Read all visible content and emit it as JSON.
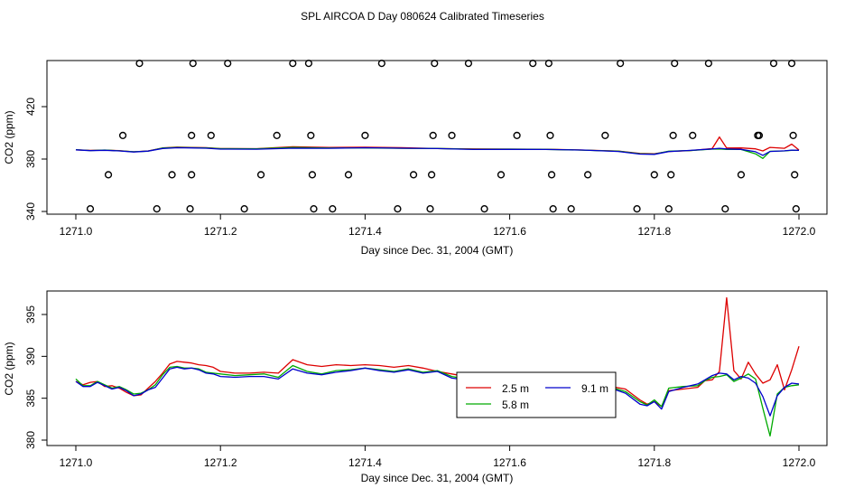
{
  "figure": {
    "title": "SPL AIRCOA D  Day 080624  Calibrated Timeseries"
  },
  "chart_data": [
    {
      "type": "scatter+line",
      "xlabel": "Day since Dec. 31, 2004 (GMT)",
      "ylabel": "CO2 (ppm)",
      "xlim": [
        1271.0,
        1272.0
      ],
      "ylim": [
        340,
        450
      ],
      "x_ticks": [
        "1271.0",
        "1271.2",
        "1271.4",
        "1271.6",
        "1271.8",
        "1272.0"
      ],
      "y_ticks": [
        "340",
        "380",
        "420"
      ],
      "cal_points": {
        "marker": "circle",
        "points": [
          [
            1271.02,
            342
          ],
          [
            1271.045,
            368
          ],
          [
            1271.065,
            398
          ],
          [
            1271.088,
            453
          ],
          [
            1271.112,
            342
          ],
          [
            1271.133,
            368
          ],
          [
            1271.158,
            342
          ],
          [
            1271.16,
            368
          ],
          [
            1271.16,
            398
          ],
          [
            1271.162,
            453
          ],
          [
            1271.187,
            398
          ],
          [
            1271.21,
            453
          ],
          [
            1271.233,
            342
          ],
          [
            1271.256,
            368
          ],
          [
            1271.278,
            398
          ],
          [
            1271.3,
            453
          ],
          [
            1271.322,
            453
          ],
          [
            1271.325,
            398
          ],
          [
            1271.327,
            368
          ],
          [
            1271.329,
            342
          ],
          [
            1271.355,
            342
          ],
          [
            1271.377,
            368
          ],
          [
            1271.4,
            398
          ],
          [
            1271.423,
            453
          ],
          [
            1271.445,
            342
          ],
          [
            1271.467,
            368
          ],
          [
            1271.49,
            342
          ],
          [
            1271.492,
            368
          ],
          [
            1271.494,
            398
          ],
          [
            1271.496,
            453
          ],
          [
            1271.52,
            398
          ],
          [
            1271.543,
            453
          ],
          [
            1271.565,
            342
          ],
          [
            1271.588,
            368
          ],
          [
            1271.61,
            398
          ],
          [
            1271.632,
            453
          ],
          [
            1271.654,
            453
          ],
          [
            1271.656,
            398
          ],
          [
            1271.658,
            368
          ],
          [
            1271.66,
            342
          ],
          [
            1271.685,
            342
          ],
          [
            1271.708,
            368
          ],
          [
            1271.732,
            398
          ],
          [
            1271.753,
            453
          ],
          [
            1271.776,
            342
          ],
          [
            1271.8,
            368
          ],
          [
            1271.82,
            342
          ],
          [
            1271.823,
            368
          ],
          [
            1271.826,
            398
          ],
          [
            1271.828,
            453
          ],
          [
            1271.853,
            398
          ],
          [
            1271.875,
            453
          ],
          [
            1271.898,
            342
          ],
          [
            1271.92,
            368
          ],
          [
            1271.943,
            398
          ],
          [
            1271.945,
            398
          ],
          [
            1271.965,
            453
          ],
          [
            1271.99,
            453
          ],
          [
            1271.992,
            398
          ],
          [
            1271.994,
            368
          ],
          [
            1271.996,
            342
          ]
        ]
      },
      "x": [
        1271.0,
        1271.02,
        1271.04,
        1271.06,
        1271.08,
        1271.1,
        1271.12,
        1271.14,
        1271.16,
        1271.18,
        1271.2,
        1271.25,
        1271.3,
        1271.35,
        1271.4,
        1271.45,
        1271.5,
        1271.55,
        1271.6,
        1271.65,
        1271.7,
        1271.75,
        1271.78,
        1271.8,
        1271.82,
        1271.85,
        1271.88,
        1271.89,
        1271.9,
        1271.92,
        1271.94,
        1271.95,
        1271.96,
        1271.98,
        1271.99,
        1272.0
      ],
      "series": [
        {
          "color": "#dd0000",
          "values": [
            387.0,
            386.6,
            386.8,
            386.4,
            385.5,
            386.2,
            388.5,
            389.1,
            388.9,
            388.7,
            388.0,
            387.9,
            389.4,
            388.8,
            389.0,
            388.7,
            388.0,
            387.7,
            387.6,
            387.5,
            386.9,
            386.1,
            384.3,
            384.0,
            385.8,
            386.5,
            388.0,
            396.8,
            388.4,
            388.5,
            387.8,
            386.2,
            388.9,
            388.2,
            391.4,
            386.9
          ]
        },
        {
          "color": "#00aa00",
          "values": [
            387.2,
            386.5,
            386.9,
            386.3,
            385.6,
            386.0,
            388.4,
            388.9,
            388.7,
            388.5,
            387.9,
            387.8,
            388.8,
            388.4,
            388.5,
            388.2,
            388.1,
            387.5,
            387.6,
            387.4,
            386.8,
            386.0,
            384.1,
            383.8,
            386.0,
            386.5,
            387.6,
            387.7,
            387.4,
            387.3,
            384.0,
            380.5,
            385.9,
            386.2,
            386.6,
            386.6
          ]
        },
        {
          "color": "#0000cc",
          "values": [
            387.0,
            386.4,
            386.7,
            386.2,
            385.4,
            386.1,
            388.1,
            388.6,
            388.5,
            388.3,
            387.6,
            387.5,
            388.3,
            388.2,
            388.6,
            388.3,
            388.0,
            387.3,
            387.4,
            387.3,
            386.9,
            385.8,
            383.8,
            383.6,
            385.7,
            386.6,
            387.7,
            388.2,
            387.7,
            387.4,
            385.6,
            382.8,
            385.8,
            386.3,
            386.8,
            386.7
          ]
        }
      ]
    },
    {
      "type": "line",
      "xlabel": "Day since Dec. 31, 2004 (GMT)",
      "ylabel": "CO2 (ppm)",
      "xlim": [
        1271.0,
        1272.0
      ],
      "ylim": [
        380,
        397.5
      ],
      "x_ticks": [
        "1271.0",
        "1271.2",
        "1271.4",
        "1271.6",
        "1271.8",
        "1272.0"
      ],
      "y_ticks": [
        "380",
        "385",
        "390",
        "395"
      ],
      "legend_position": "center",
      "legend": [
        {
          "label": "2.5 m",
          "color": "#dd0000"
        },
        {
          "label": "5.8 m",
          "color": "#00aa00"
        },
        {
          "label": "9.1 m",
          "color": "#0000cc"
        }
      ],
      "x": [
        1271.0,
        1271.01,
        1271.02,
        1271.03,
        1271.04,
        1271.05,
        1271.06,
        1271.07,
        1271.08,
        1271.09,
        1271.1,
        1271.11,
        1271.12,
        1271.13,
        1271.14,
        1271.15,
        1271.16,
        1271.17,
        1271.18,
        1271.19,
        1271.2,
        1271.22,
        1271.24,
        1271.26,
        1271.28,
        1271.3,
        1271.32,
        1271.34,
        1271.36,
        1271.38,
        1271.4,
        1271.42,
        1271.44,
        1271.46,
        1271.48,
        1271.5,
        1271.52,
        1271.54,
        1271.56,
        1271.58,
        1271.6,
        1271.62,
        1271.64,
        1271.66,
        1271.68,
        1271.7,
        1271.72,
        1271.74,
        1271.76,
        1271.78,
        1271.79,
        1271.8,
        1271.81,
        1271.82,
        1271.84,
        1271.86,
        1271.87,
        1271.88,
        1271.89,
        1271.9,
        1271.91,
        1271.92,
        1271.93,
        1271.94,
        1271.95,
        1271.96,
        1271.97,
        1271.98,
        1271.99,
        1272.0
      ],
      "series": [
        {
          "name": "2.5 m",
          "color": "#dd0000",
          "values": [
            387.0,
            386.6,
            386.9,
            387.0,
            386.4,
            386.5,
            386.2,
            385.7,
            385.3,
            385.4,
            386.2,
            387.0,
            388.0,
            389.1,
            389.4,
            389.3,
            389.2,
            389.0,
            388.9,
            388.7,
            388.2,
            388.0,
            388.0,
            388.1,
            388.0,
            389.6,
            389.0,
            388.8,
            389.0,
            388.9,
            389.0,
            388.9,
            388.7,
            388.9,
            388.6,
            388.2,
            387.9,
            387.6,
            387.8,
            387.6,
            387.7,
            387.5,
            387.6,
            387.5,
            387.4,
            386.9,
            386.6,
            386.4,
            386.1,
            384.8,
            384.3,
            384.6,
            384.0,
            385.9,
            386.1,
            386.3,
            387.1,
            387.2,
            388.2,
            397.0,
            388.3,
            387.3,
            389.3,
            387.9,
            386.8,
            387.2,
            389.0,
            386.0,
            388.4,
            391.2
          ]
        },
        {
          "name": "5.8 m",
          "color": "#00aa00",
          "values": [
            387.3,
            386.5,
            386.5,
            387.0,
            386.6,
            386.2,
            386.4,
            386.0,
            385.5,
            385.6,
            386.0,
            386.6,
            387.8,
            388.7,
            388.8,
            388.6,
            388.6,
            388.5,
            388.1,
            388.0,
            387.9,
            387.7,
            387.8,
            387.9,
            387.5,
            388.9,
            388.2,
            387.9,
            388.3,
            388.4,
            388.6,
            388.4,
            388.2,
            388.5,
            388.1,
            388.3,
            387.6,
            387.3,
            387.7,
            387.5,
            387.8,
            387.4,
            387.5,
            387.6,
            387.3,
            386.8,
            386.5,
            386.3,
            385.8,
            384.6,
            384.2,
            384.8,
            384.0,
            386.2,
            386.4,
            386.5,
            387.1,
            387.5,
            387.6,
            387.8,
            387.0,
            387.4,
            387.9,
            387.3,
            383.8,
            380.5,
            385.5,
            386.3,
            386.5,
            386.6
          ]
        },
        {
          "name": "9.1 m",
          "color": "#0000cc",
          "values": [
            387.0,
            386.4,
            386.4,
            386.9,
            386.5,
            386.1,
            386.3,
            385.9,
            385.3,
            385.5,
            386.0,
            386.3,
            387.4,
            388.5,
            388.7,
            388.5,
            388.6,
            388.4,
            388.0,
            387.9,
            387.6,
            387.5,
            387.6,
            387.6,
            387.3,
            388.5,
            388.0,
            387.8,
            388.1,
            388.3,
            388.6,
            388.3,
            388.1,
            388.4,
            388.0,
            388.2,
            387.4,
            387.2,
            387.6,
            387.4,
            387.7,
            387.2,
            387.4,
            387.6,
            387.6,
            386.9,
            386.6,
            386.2,
            385.6,
            384.3,
            384.1,
            384.6,
            383.7,
            385.8,
            386.3,
            386.7,
            387.2,
            387.7,
            388.0,
            387.9,
            387.2,
            387.6,
            387.4,
            386.8,
            385.2,
            382.9,
            385.3,
            386.3,
            386.8,
            386.7
          ]
        }
      ]
    }
  ]
}
